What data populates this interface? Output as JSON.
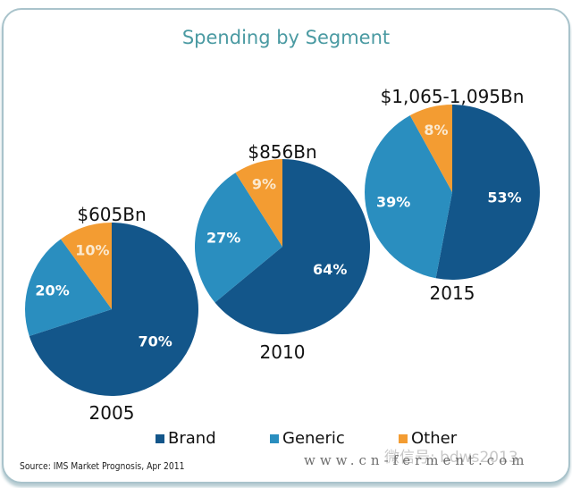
{
  "chart_data": {
    "type": "pie",
    "title": "Spending by Segment",
    "legend": {
      "placement": "bottom",
      "entries": [
        {
          "name": "Brand",
          "color": "#13568a"
        },
        {
          "name": "Generic",
          "color": "#2a8ebf"
        },
        {
          "name": "Other",
          "color": "#f39c32"
        }
      ]
    },
    "pies": [
      {
        "year": "2005",
        "total_label": "$605Bn",
        "slices": [
          {
            "name": "Brand",
            "value": 70,
            "label": "70%"
          },
          {
            "name": "Generic",
            "value": 20,
            "label": "20%"
          },
          {
            "name": "Other",
            "value": 10,
            "label": "10%"
          }
        ]
      },
      {
        "year": "2010",
        "total_label": "$856Bn",
        "slices": [
          {
            "name": "Brand",
            "value": 64,
            "label": "64%"
          },
          {
            "name": "Generic",
            "value": 27,
            "label": "27%"
          },
          {
            "name": "Other",
            "value": 9,
            "label": "9%"
          }
        ]
      },
      {
        "year": "2015",
        "total_label": "$1,065-1,095Bn",
        "slices": [
          {
            "name": "Brand",
            "value": 53,
            "label": "53%"
          },
          {
            "name": "Generic",
            "value": 39,
            "label": "39%"
          },
          {
            "name": "Other",
            "value": 8,
            "label": "8%"
          }
        ]
      }
    ]
  },
  "source": "Source: IMS Market Prognosis, Apr 2011",
  "watermark": {
    "url": "www.cn-ferment.com",
    "wechat": "微信号: bdws2013"
  }
}
